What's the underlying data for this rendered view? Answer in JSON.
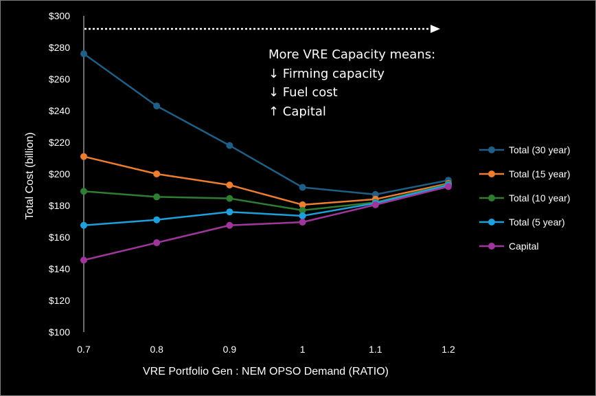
{
  "chart_data": {
    "type": "line",
    "title": "",
    "xlabel": "VRE Portfolio Gen : NEM OPSO Demand (RATIO)",
    "ylabel": "Total Cost (billion)",
    "x": [
      0.7,
      0.8,
      0.9,
      1.0,
      1.1,
      1.2
    ],
    "x_tick_labels": [
      "0.7",
      "0.8",
      "0.9",
      "1",
      "1.1",
      "1.2"
    ],
    "xlim": [
      0.7,
      1.2
    ],
    "ylim": [
      100,
      300
    ],
    "y_ticks": [
      100,
      120,
      140,
      160,
      180,
      200,
      220,
      240,
      260,
      280,
      300
    ],
    "y_tick_labels": [
      "$100",
      "$120",
      "$140",
      "$160",
      "$180",
      "$200",
      "$220",
      "$240",
      "$260",
      "$280",
      "$300"
    ],
    "grid": false,
    "legend_position": "right",
    "series": [
      {
        "name": "Total (30 year)",
        "color": "#1f5f86",
        "values": [
          276,
          243,
          218,
          191.5,
          187,
          196
        ]
      },
      {
        "name": "Total (15 year)",
        "color": "#ed7d31",
        "values": [
          211,
          200,
          193,
          180.5,
          184,
          194
        ]
      },
      {
        "name": "Total (10 year)",
        "color": "#2e7d32",
        "values": [
          189,
          185.5,
          184.5,
          177,
          182,
          193.5
        ]
      },
      {
        "name": "Total (5 year)",
        "color": "#1ea0dc",
        "values": [
          167.5,
          171,
          176,
          173.5,
          181.5,
          193
        ]
      },
      {
        "name": "Capital",
        "color": "#a0369c",
        "values": [
          145.5,
          156.5,
          167.5,
          169.5,
          180.5,
          192
        ]
      }
    ],
    "annotation": {
      "lines": [
        "More VRE Capacity means:",
        "↓ Firming capacity",
        "↓ Fuel cost",
        "↑ Capital"
      ],
      "arrow": "dotted-right-arrow"
    }
  }
}
